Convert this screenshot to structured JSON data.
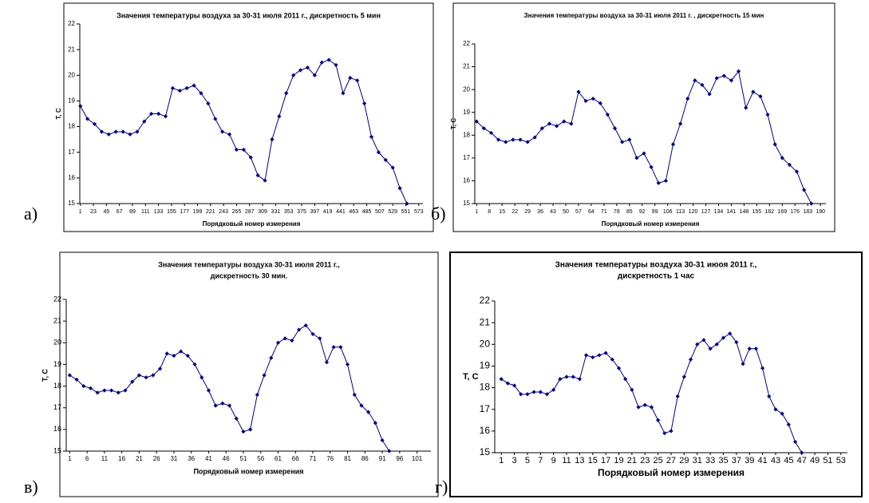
{
  "chart_data": [
    {
      "type": "line",
      "panel": "а)",
      "title": [
        "Значения температуры воздуха за 30-31 июля 2011 г., дискретность 5 мин"
      ],
      "xlabel": "Порядковый номер измерения",
      "ylabel": "T, C",
      "x": [
        1,
        13,
        25,
        37,
        49,
        61,
        73,
        85,
        97,
        109,
        121,
        133,
        145,
        157,
        169,
        181,
        193,
        205,
        217,
        229,
        241,
        253,
        265,
        277,
        289,
        301,
        313,
        325,
        337,
        349,
        361,
        373,
        385,
        397,
        409,
        421,
        433,
        445,
        457,
        469,
        481,
        493,
        505,
        517,
        529,
        541,
        553
      ],
      "series": [
        {
          "name": "T",
          "color": "#000080",
          "values": [
            18.8,
            18.3,
            18.1,
            17.8,
            17.7,
            17.8,
            17.8,
            17.7,
            17.8,
            18.2,
            18.5,
            18.5,
            18.4,
            19.5,
            19.4,
            19.5,
            19.6,
            19.3,
            18.9,
            18.3,
            17.8,
            17.7,
            17.1,
            17.1,
            16.8,
            16.1,
            15.9,
            17.5,
            18.4,
            19.3,
            20.0,
            20.2,
            20.3,
            20.0,
            20.5,
            20.6,
            20.4,
            19.3,
            19.9,
            19.8,
            18.9,
            17.6,
            17.0,
            16.7,
            16.4,
            15.6,
            15.0
          ]
        }
      ],
      "xlim": [
        0,
        580
      ],
      "xticks": [
        1,
        23,
        45,
        67,
        89,
        111,
        133,
        155,
        177,
        199,
        221,
        243,
        265,
        287,
        309,
        331,
        353,
        375,
        397,
        419,
        441,
        463,
        485,
        507,
        529,
        551,
        573
      ],
      "ylim": [
        15,
        22
      ],
      "yticks": [
        15,
        16,
        17,
        18,
        19,
        20,
        21,
        22
      ]
    },
    {
      "type": "line",
      "panel": "б)",
      "title": [
        "Значения температуры воздуха за 30-31 июля 2011 г. , дискретность 15 мин"
      ],
      "xlabel": "Порядковый номер измерения",
      "ylabel": "T, C",
      "x": [
        1,
        5,
        9,
        13,
        17,
        21,
        25,
        29,
        33,
        37,
        41,
        45,
        49,
        53,
        57,
        61,
        65,
        69,
        73,
        77,
        81,
        85,
        89,
        93,
        97,
        101,
        105,
        109,
        113,
        117,
        121,
        125,
        129,
        133,
        137,
        141,
        145,
        149,
        153,
        157,
        161,
        165,
        169,
        173,
        177,
        181,
        185
      ],
      "series": [
        {
          "name": "T",
          "color": "#000080",
          "values": [
            18.6,
            18.3,
            18.1,
            17.8,
            17.7,
            17.8,
            17.8,
            17.7,
            17.9,
            18.3,
            18.5,
            18.4,
            18.6,
            18.5,
            19.9,
            19.5,
            19.6,
            19.4,
            18.9,
            18.3,
            17.7,
            17.8,
            17.0,
            17.2,
            16.6,
            15.9,
            16.0,
            17.6,
            18.5,
            19.6,
            20.4,
            20.2,
            19.8,
            20.5,
            20.6,
            20.4,
            20.8,
            19.2,
            19.9,
            19.7,
            18.9,
            17.6,
            17.0,
            16.7,
            16.4,
            15.6,
            15.0
          ]
        }
      ],
      "xlim": [
        0,
        193
      ],
      "xticks": [
        1,
        8,
        15,
        22,
        29,
        36,
        43,
        50,
        57,
        64,
        71,
        78,
        85,
        92,
        99,
        106,
        113,
        120,
        127,
        134,
        141,
        148,
        155,
        162,
        169,
        176,
        183,
        190
      ],
      "ylim": [
        15,
        22
      ],
      "yticks": [
        15,
        16,
        17,
        18,
        19,
        20,
        21,
        22
      ]
    },
    {
      "type": "line",
      "panel": "в)",
      "title": [
        "Значения температуры воздуха 30-31 июля 2011 г.,",
        "дискретность 30 мин."
      ],
      "xlabel": "Порядковый номер измерения",
      "ylabel": "T, C",
      "x": [
        1,
        3,
        5,
        7,
        9,
        11,
        13,
        15,
        17,
        19,
        21,
        23,
        25,
        27,
        29,
        31,
        33,
        35,
        37,
        39,
        41,
        43,
        45,
        47,
        49,
        51,
        53,
        55,
        57,
        59,
        61,
        63,
        65,
        67,
        69,
        71,
        73,
        75,
        77,
        79,
        81,
        83,
        85,
        87,
        89,
        91,
        93
      ],
      "series": [
        {
          "name": "T",
          "color": "#000080",
          "values": [
            18.5,
            18.3,
            18.0,
            17.9,
            17.7,
            17.8,
            17.8,
            17.7,
            17.8,
            18.2,
            18.5,
            18.4,
            18.5,
            18.8,
            19.5,
            19.4,
            19.6,
            19.4,
            19.0,
            18.4,
            17.8,
            17.1,
            17.2,
            17.1,
            16.5,
            15.9,
            16.0,
            17.6,
            18.5,
            19.3,
            20.0,
            20.2,
            20.1,
            20.6,
            20.8,
            20.4,
            20.2,
            19.1,
            19.8,
            19.8,
            19.0,
            17.6,
            17.1,
            16.8,
            16.3,
            15.5,
            15.0
          ]
        }
      ],
      "xlim": [
        0,
        105
      ],
      "xticks": [
        1,
        6,
        11,
        16,
        21,
        26,
        31,
        36,
        41,
        46,
        51,
        56,
        61,
        66,
        71,
        76,
        81,
        86,
        91,
        96,
        101
      ],
      "ylim": [
        15,
        22
      ],
      "yticks": [
        15,
        16,
        17,
        18,
        19,
        20,
        21,
        22
      ]
    },
    {
      "type": "line",
      "panel": "г)",
      "title": [
        "Значения температуры воздуха 30-31 июоя 2011 г.,",
        "дискретность 1 час"
      ],
      "xlabel": "Порядковый номер измерения",
      "ylabel": "T, C",
      "x": [
        1,
        2,
        3,
        4,
        5,
        6,
        7,
        8,
        9,
        10,
        11,
        12,
        13,
        14,
        15,
        16,
        17,
        18,
        19,
        20,
        21,
        22,
        23,
        24,
        25,
        26,
        27,
        28,
        29,
        30,
        31,
        32,
        33,
        34,
        35,
        36,
        37,
        38,
        39,
        40,
        41,
        42,
        43,
        44,
        45,
        46,
        47
      ],
      "series": [
        {
          "name": "T",
          "color": "#000080",
          "values": [
            18.4,
            18.2,
            18.1,
            17.7,
            17.7,
            17.8,
            17.8,
            17.7,
            17.9,
            18.4,
            18.5,
            18.5,
            18.4,
            19.5,
            19.4,
            19.5,
            19.6,
            19.3,
            18.9,
            18.4,
            17.9,
            17.1,
            17.2,
            17.1,
            16.5,
            15.9,
            16.0,
            17.6,
            18.5,
            19.3,
            20.0,
            20.2,
            19.8,
            20.0,
            20.3,
            20.5,
            20.1,
            19.1,
            19.8,
            19.8,
            18.9,
            17.6,
            17.0,
            16.8,
            16.3,
            15.5,
            15.0
          ]
        }
      ],
      "xlim": [
        0,
        54
      ],
      "xticks": [
        1,
        3,
        5,
        7,
        9,
        11,
        13,
        15,
        17,
        19,
        21,
        23,
        25,
        27,
        29,
        31,
        33,
        35,
        37,
        39,
        41,
        43,
        45,
        47,
        49,
        51,
        53
      ],
      "ylim": [
        15,
        22
      ],
      "yticks": [
        15,
        16,
        17,
        18,
        19,
        20,
        21,
        22
      ]
    }
  ]
}
